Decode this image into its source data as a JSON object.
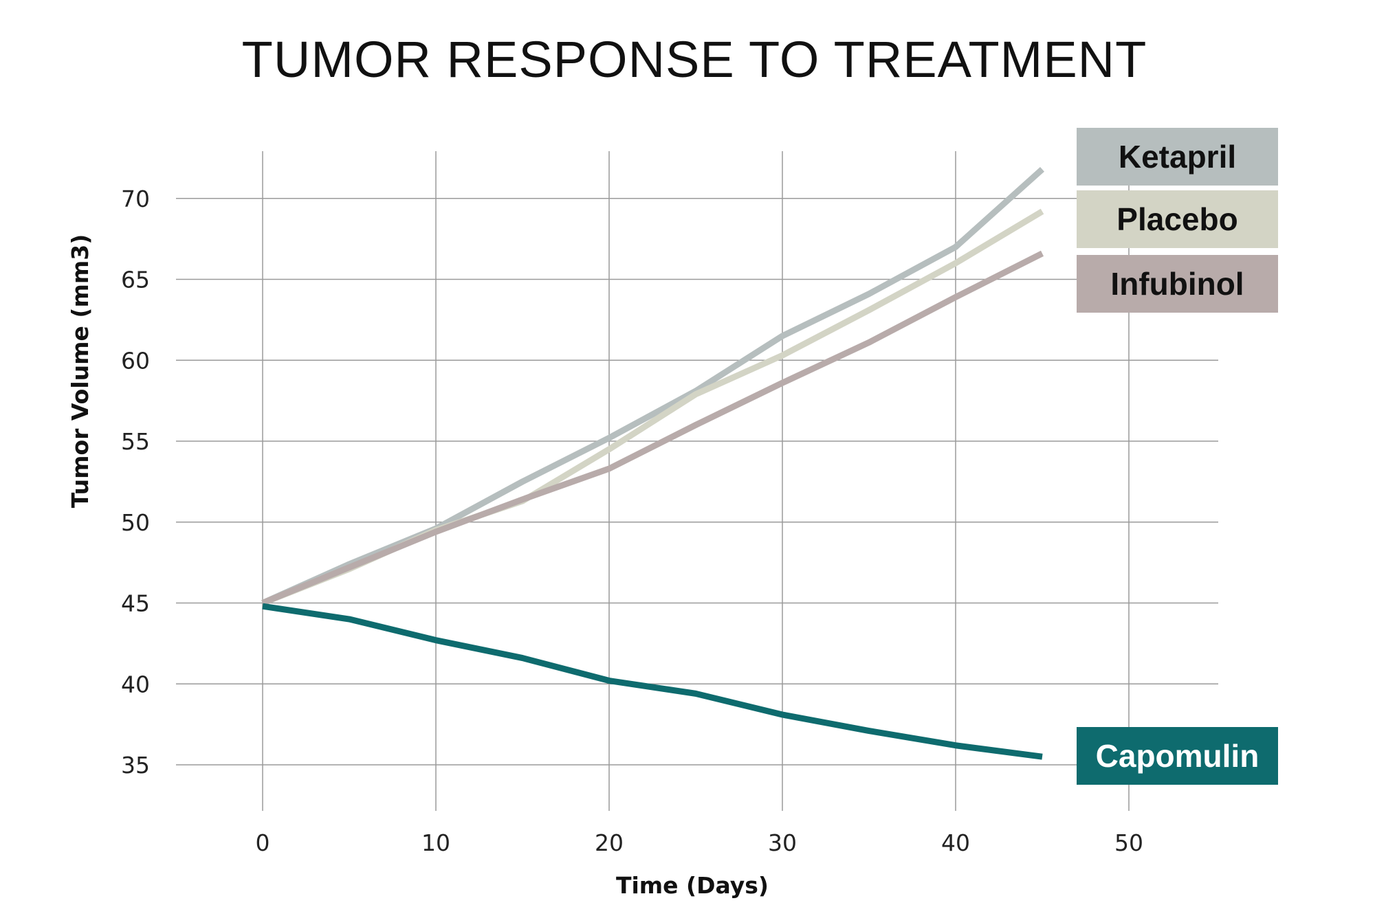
{
  "chart_data": {
    "type": "line",
    "title": "TUMOR RESPONSE TO TREATMENT",
    "xlabel": "Time (Days)",
    "ylabel": "Tumor Volume (mm3)",
    "xlim": [
      -5,
      55
    ],
    "ylim": [
      32,
      73
    ],
    "x_ticks": [
      0,
      10,
      20,
      30,
      40,
      50
    ],
    "y_ticks": [
      35,
      40,
      45,
      50,
      55,
      60,
      65,
      70
    ],
    "x_tick_labels": [
      "0",
      "10",
      "20",
      "30",
      "40",
      "50"
    ],
    "y_tick_labels": [
      "35",
      "40",
      "45",
      "50",
      "55",
      "60",
      "65",
      "70"
    ],
    "grid": true,
    "legend_position": "right",
    "x": [
      0,
      5,
      10,
      15,
      20,
      25,
      30,
      35,
      40,
      45
    ],
    "series": [
      {
        "name": "Ketapril",
        "color": "#b6bebe",
        "text_color": "#111111",
        "values": [
          45.0,
          47.4,
          49.6,
          52.5,
          55.2,
          58.1,
          61.5,
          64.1,
          67.0,
          71.8
        ]
      },
      {
        "name": "Placebo",
        "color": "#d3d4c5",
        "text_color": "#111111",
        "values": [
          45.0,
          47.1,
          49.5,
          51.3,
          54.5,
          57.9,
          60.3,
          63.1,
          66.0,
          69.2
        ]
      },
      {
        "name": "Infubinol",
        "color": "#b8abaa",
        "text_color": "#111111",
        "values": [
          45.0,
          47.2,
          49.4,
          51.4,
          53.3,
          56.0,
          58.6,
          61.1,
          63.9,
          66.6
        ]
      },
      {
        "name": "Capomulin",
        "color": "#0e6b6e",
        "text_color": "#ffffff",
        "values": [
          44.8,
          44.0,
          42.7,
          41.6,
          40.2,
          39.4,
          38.1,
          37.1,
          36.2,
          35.5
        ]
      }
    ]
  }
}
